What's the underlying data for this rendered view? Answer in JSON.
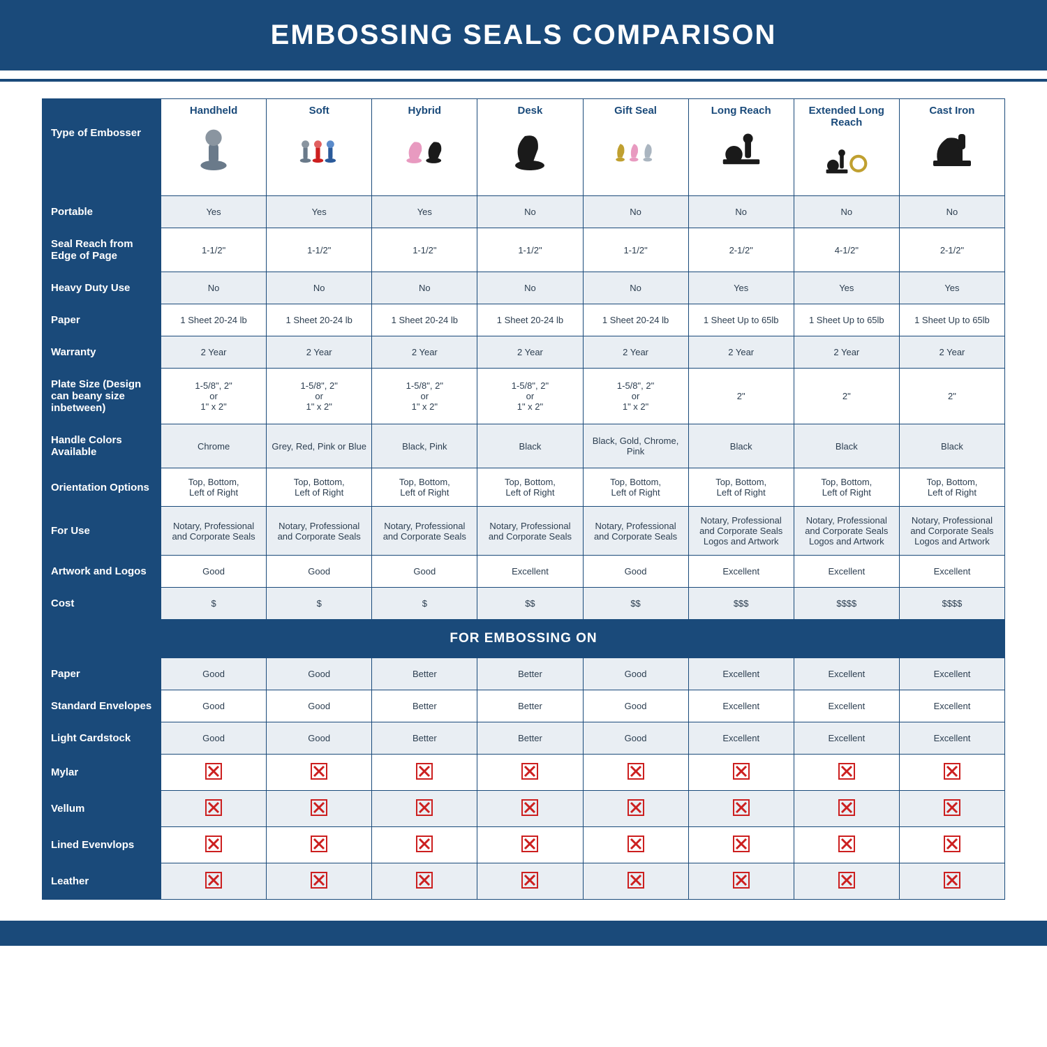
{
  "title": "EMBOSSING SEALS COMPARISON",
  "colors": {
    "brand": "#1a4a7a",
    "row_alt": "#e9eef3",
    "row_norm": "#ffffff",
    "x_red": "#cc1f1f",
    "text": "#2c3e50"
  },
  "table": {
    "row_header_label": "Type of Embosser",
    "columns": [
      "Handheld",
      "Soft",
      "Hybrid",
      "Desk",
      "Gift Seal",
      "Long Reach",
      "Extended Long Reach",
      "Cast Iron"
    ],
    "section_label": "FOR EMBOSSING ON",
    "rows_top": [
      {
        "label": "Portable",
        "values": [
          "Yes",
          "Yes",
          "Yes",
          "No",
          "No",
          "No",
          "No",
          "No"
        ],
        "alt": true
      },
      {
        "label": "Seal Reach from Edge of Page",
        "values": [
          "1-1/2\"",
          "1-1/2\"",
          "1-1/2\"",
          "1-1/2\"",
          "1-1/2\"",
          "2-1/2\"",
          "4-1/2\"",
          "2-1/2\""
        ],
        "alt": false
      },
      {
        "label": "Heavy Duty Use",
        "values": [
          "No",
          "No",
          "No",
          "No",
          "No",
          "Yes",
          "Yes",
          "Yes"
        ],
        "alt": true
      },
      {
        "label": "Paper",
        "values": [
          "1 Sheet 20-24 lb",
          "1 Sheet 20-24 lb",
          "1 Sheet 20-24 lb",
          "1 Sheet 20-24 lb",
          "1 Sheet 20-24 lb",
          "1 Sheet Up to 65lb",
          "1 Sheet Up to 65lb",
          "1 Sheet Up to 65lb"
        ],
        "alt": false
      },
      {
        "label": "Warranty",
        "values": [
          "2 Year",
          "2 Year",
          "2 Year",
          "2 Year",
          "2 Year",
          "2 Year",
          "2 Year",
          "2 Year"
        ],
        "alt": true
      },
      {
        "label": "Plate Size (Design can beany size inbetween)",
        "values": [
          "1-5/8\", 2\"\nor\n1\" x 2\"",
          "1-5/8\", 2\"\nor\n1\" x 2\"",
          "1-5/8\", 2\"\nor\n1\" x 2\"",
          "1-5/8\", 2\"\nor\n1\" x 2\"",
          "1-5/8\", 2\"\nor\n1\" x 2\"",
          "2\"",
          "2\"",
          "2\""
        ],
        "alt": false
      },
      {
        "label": "Handle Colors Available",
        "values": [
          "Chrome",
          "Grey, Red, Pink or Blue",
          "Black, Pink",
          "Black",
          "Black, Gold, Chrome, Pink",
          "Black",
          "Black",
          "Black"
        ],
        "alt": true
      },
      {
        "label": "Orientation Options",
        "values": [
          "Top, Bottom,\nLeft of Right",
          "Top, Bottom,\nLeft of Right",
          "Top, Bottom,\nLeft of Right",
          "Top, Bottom,\nLeft of Right",
          "Top, Bottom,\nLeft of Right",
          "Top, Bottom,\nLeft of Right",
          "Top, Bottom,\nLeft of Right",
          "Top, Bottom,\nLeft of Right"
        ],
        "alt": false
      },
      {
        "label": "For Use",
        "values": [
          "Notary, Professional and Corporate Seals",
          "Notary, Professional and Corporate Seals",
          "Notary, Professional and Corporate Seals",
          "Notary, Professional and Corporate Seals",
          "Notary, Professional and Corporate Seals",
          "Notary, Professional and Corporate Seals Logos and Artwork",
          "Notary, Professional and Corporate Seals Logos and Artwork",
          "Notary, Professional and Corporate Seals Logos and Artwork"
        ],
        "alt": true
      },
      {
        "label": "Artwork and Logos",
        "values": [
          "Good",
          "Good",
          "Good",
          "Excellent",
          "Good",
          "Excellent",
          "Excellent",
          "Excellent"
        ],
        "alt": false
      },
      {
        "label": "Cost",
        "values": [
          "$",
          "$",
          "$",
          "$$",
          "$$",
          "$$$",
          "$$$$",
          "$$$$"
        ],
        "alt": true
      }
    ],
    "rows_bottom": [
      {
        "label": "Paper",
        "values": [
          "Good",
          "Good",
          "Better",
          "Better",
          "Good",
          "Excellent",
          "Excellent",
          "Excellent"
        ],
        "alt": true
      },
      {
        "label": "Standard Envelopes",
        "values": [
          "Good",
          "Good",
          "Better",
          "Better",
          "Good",
          "Excellent",
          "Excellent",
          "Excellent"
        ],
        "alt": false
      },
      {
        "label": "Light Cardstock",
        "values": [
          "Good",
          "Good",
          "Better",
          "Better",
          "Good",
          "Excellent",
          "Excellent",
          "Excellent"
        ],
        "alt": true
      },
      {
        "label": "Mylar",
        "values": [
          "X",
          "X",
          "X",
          "X",
          "X",
          "X",
          "X",
          "X"
        ],
        "alt": false
      },
      {
        "label": "Vellum",
        "values": [
          "X",
          "X",
          "X",
          "X",
          "X",
          "X",
          "X",
          "X"
        ],
        "alt": true
      },
      {
        "label": "Lined Evenvlops",
        "values": [
          "X",
          "X",
          "X",
          "X",
          "X",
          "X",
          "X",
          "X"
        ],
        "alt": false
      },
      {
        "label": "Leather",
        "values": [
          "X",
          "X",
          "X",
          "X",
          "X",
          "X",
          "X",
          "X"
        ],
        "alt": true
      }
    ]
  },
  "icons": {
    "handheld": {
      "colors": [
        "#6a7a8a"
      ]
    },
    "soft": {
      "colors": [
        "#6a7a8a",
        "#cc1f1f",
        "#2a5a9a",
        "#d46aa0"
      ]
    },
    "hybrid": {
      "colors": [
        "#e89ac0",
        "#1a1a1a"
      ]
    },
    "desk": {
      "colors": [
        "#1a1a1a"
      ]
    },
    "giftseal": {
      "colors": [
        "#c0a030",
        "#e89ac0",
        "#aab5c0"
      ]
    },
    "longreach": {
      "colors": [
        "#1a1a1a"
      ]
    },
    "extlongreach": {
      "colors": [
        "#1a1a1a",
        "#c0a030"
      ]
    },
    "castiron": {
      "colors": [
        "#1a1a1a"
      ]
    }
  }
}
